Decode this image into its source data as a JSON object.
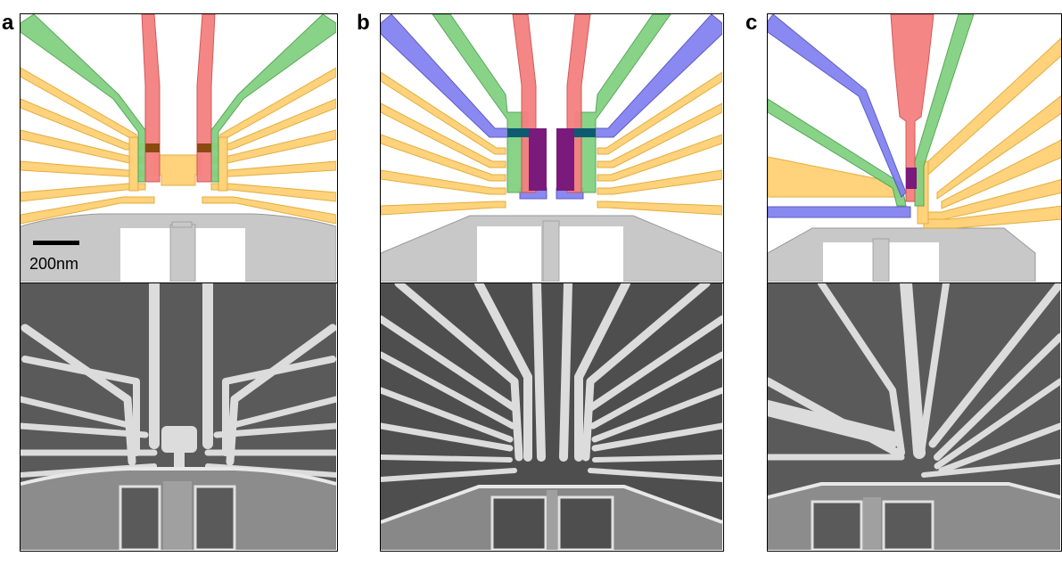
{
  "figure": {
    "panels": [
      {
        "id": "a",
        "label": "a"
      },
      {
        "id": "b",
        "label": "b"
      },
      {
        "id": "c",
        "label": "c"
      }
    ],
    "scale_bar": {
      "label": "200nm"
    }
  },
  "colors": {
    "plunger_gate": "#f48080",
    "barrier_gate": "#7fd07f",
    "screening_gate": "#ffcf70",
    "accumulation_gate": "#8080f0",
    "overlap_dark": "#7a1a7a",
    "sensor_gate": "#c8c8c8",
    "sem_background": "#5a5a5a",
    "sem_metal": "#dcdcdc"
  }
}
